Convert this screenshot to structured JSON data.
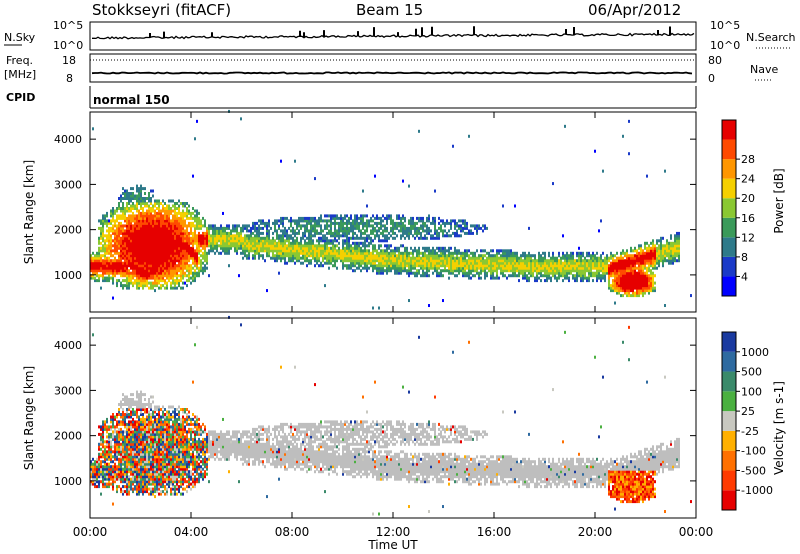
{
  "header": {
    "station": "Stokkseyri (fitACF)",
    "beam": "Beam 15",
    "date": "06/Apr/2012"
  },
  "strip_labels": {
    "nsky": "N.Sky",
    "nsky_ticks": [
      "10^5",
      "10^0"
    ],
    "nsearch": "N.Search",
    "nsearch_ticks": [
      "10^5",
      "10^0"
    ],
    "freq_line1": "Freq.",
    "freq_line2": "[MHz]",
    "freq_ticks": [
      "18",
      "8"
    ],
    "nave": "Nave",
    "nave_ticks": [
      "80",
      "0"
    ],
    "cpid": "CPID",
    "mode": "normal 150"
  },
  "chart_data": [
    {
      "type": "heatmap",
      "panel": "power",
      "xlabel": "Time UT",
      "ylabel": "Slant Range [km]",
      "x_ticks": [
        "00:00",
        "04:00",
        "08:00",
        "12:00",
        "16:00",
        "20:00",
        "00:00"
      ],
      "y_ticks": [
        1000,
        2000,
        3000,
        4000
      ],
      "xlim_hours": [
        0,
        24
      ],
      "ylim_km": [
        180,
        4600
      ],
      "colorbar_label": "Power [dB]",
      "colorbar_ticks": [
        4,
        8,
        12,
        16,
        20,
        24,
        28
      ],
      "colorbar_colors": [
        "#0000ff",
        "#1a3ac8",
        "#2e7a8a",
        "#3a9a5a",
        "#8ac832",
        "#f5d000",
        "#ff9600",
        "#ff4a00",
        "#e60000"
      ],
      "features": [
        {
          "name": "main band",
          "hours": [
            0.3,
            23.2
          ],
          "range_km": [
            1000,
            1800
          ]
        },
        {
          "name": "early echoes",
          "hours": [
            0.3,
            4.5
          ],
          "range_km": [
            700,
            2900
          ]
        },
        {
          "name": "late strong patch",
          "hours": [
            20.6,
            22.2
          ],
          "range_km": [
            600,
            1100
          ]
        }
      ]
    },
    {
      "type": "heatmap",
      "panel": "velocity",
      "xlabel": "Time UT",
      "ylabel": "Slant Range [km]",
      "x_ticks": [
        "00:00",
        "04:00",
        "08:00",
        "12:00",
        "16:00",
        "20:00",
        "00:00"
      ],
      "y_ticks": [
        1000,
        2000,
        3000,
        4000
      ],
      "xlim_hours": [
        0,
        24
      ],
      "ylim_km": [
        180,
        4600
      ],
      "colorbar_label": "Velocity [m s-1]",
      "colorbar_ticks": [
        1000,
        500,
        100,
        25,
        -25,
        -100,
        -500,
        -1000
      ],
      "colorbar_colors": [
        "#1a3aa0",
        "#2e6aa0",
        "#3a8a6a",
        "#4ab040",
        "#c8c8c0",
        "#ffb000",
        "#ff7000",
        "#ff3a00",
        "#e60000"
      ],
      "ground_scatter_color": "#bebebe"
    }
  ]
}
